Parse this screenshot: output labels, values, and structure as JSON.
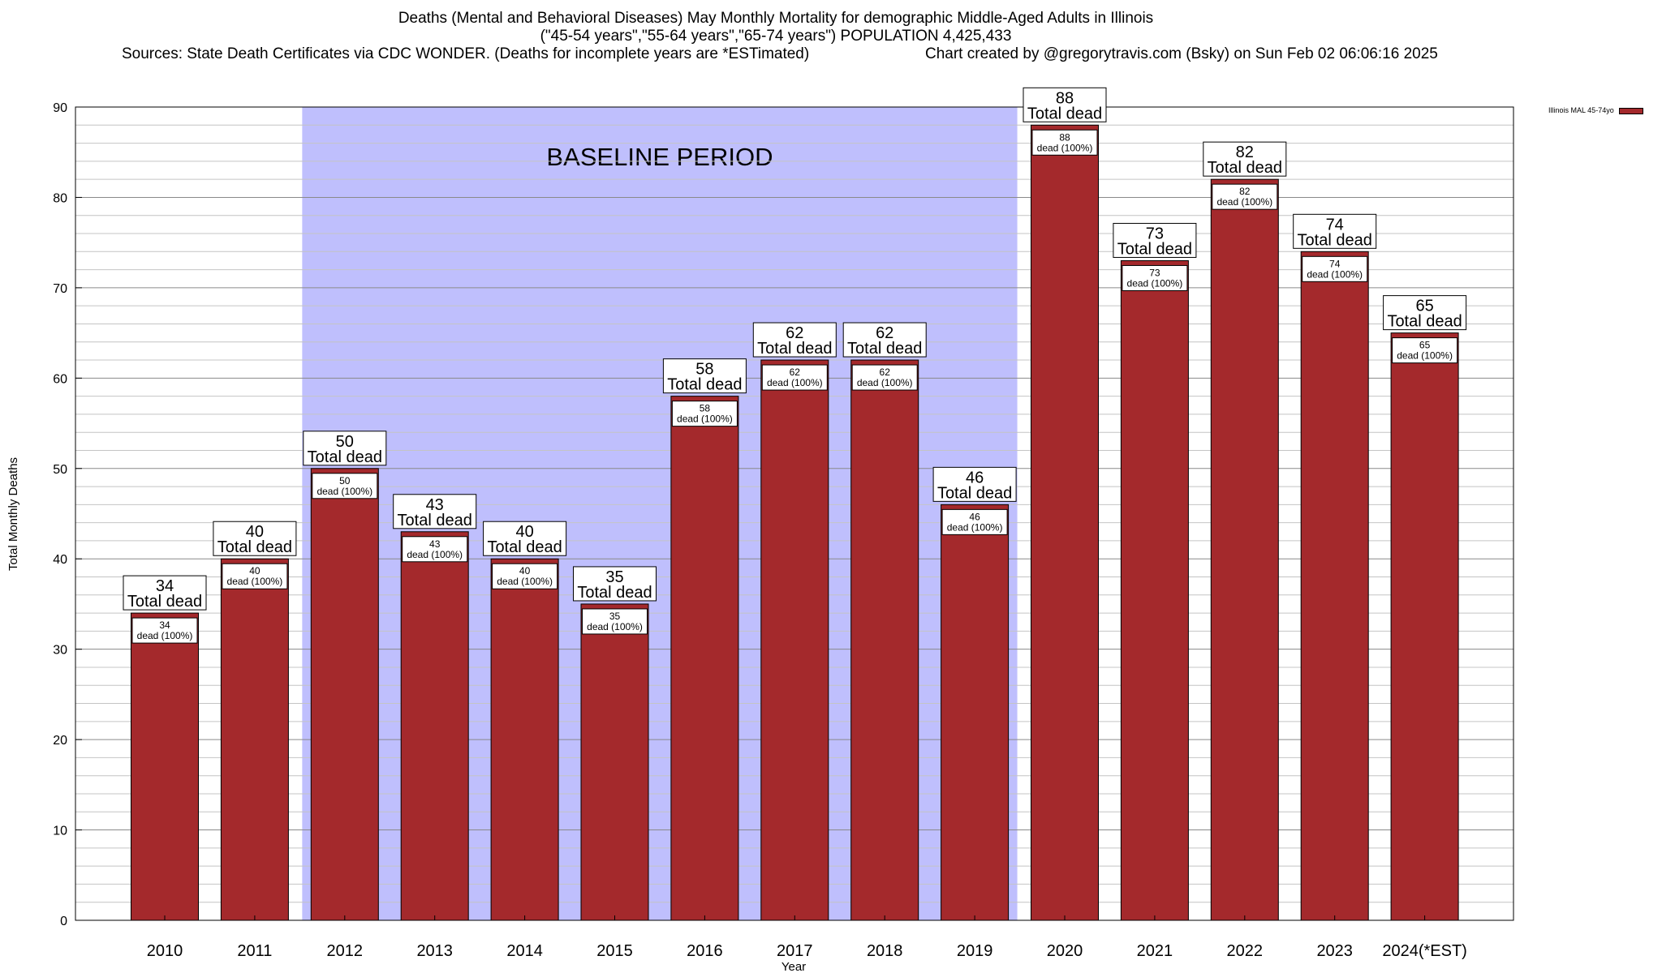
{
  "chart_data": {
    "type": "bar",
    "title_lines": [
      "Deaths (Mental and Behavioral Diseases) May Monthly Mortality for demographic Middle-Aged Adults in Illinois",
      "(\"45-54 years\",\"55-64 years\",\"65-74 years\") POPULATION 4,425,433",
      "Sources: State Death Certificates via CDC WONDER. (Deaths for incomplete years are *ESTimated)",
      "Chart created by @gregorytravis.com (Bsky) on Sun Feb 02 06:06:16 2025"
    ],
    "xlabel": "Year",
    "ylabel": "Total Monthly Deaths",
    "ylim": [
      0,
      90
    ],
    "yticks": [
      "0",
      "10",
      "20",
      "30",
      "40",
      "50",
      "60",
      "70",
      "80",
      "90"
    ],
    "categories": [
      "2010",
      "2011",
      "2012",
      "2013",
      "2014",
      "2015",
      "2016",
      "2017",
      "2018",
      "2019",
      "2020",
      "2021",
      "2022",
      "2023",
      "2024(*EST)"
    ],
    "series": [
      {
        "name": "Illinois MAL 45-74yo",
        "values": [
          34,
          40,
          50,
          43,
          40,
          35,
          58,
          62,
          62,
          46,
          88,
          73,
          82,
          74,
          65
        ]
      }
    ],
    "top_label_suffix": "Total dead",
    "inner_label_suffix": "dead (100%)",
    "baseline_label": "BASELINE PERIOD",
    "baseline_range": [
      "2012",
      "2019"
    ],
    "grid": true,
    "legend_position": "top-right",
    "colors": {
      "bar": "#a4292c",
      "baseline": "#bfbffd"
    }
  }
}
